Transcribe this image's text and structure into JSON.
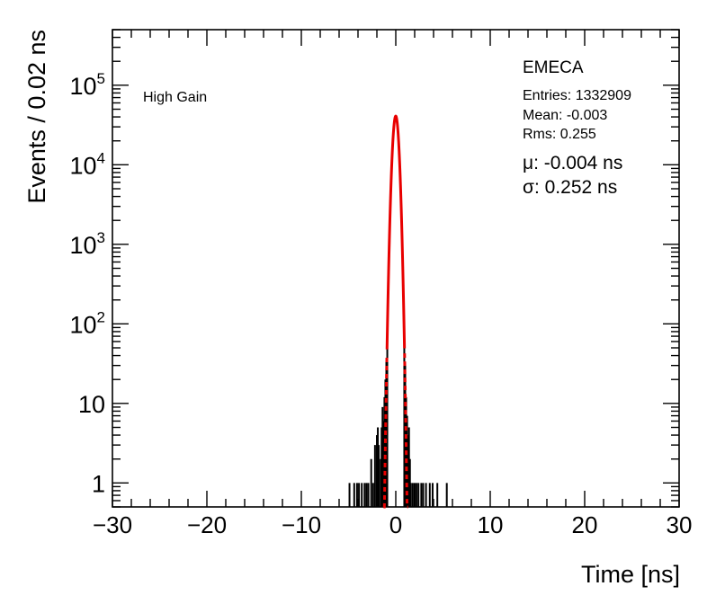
{
  "chart_data": {
    "type": "histogram",
    "title": "",
    "xlabel": "Time [ns]",
    "ylabel": "Events / 0.02 ns",
    "xlim": [
      -30,
      30
    ],
    "ylim": [
      0.5,
      500000
    ],
    "yscale": "log",
    "grid": false,
    "x_ticks": [
      -30,
      -20,
      -10,
      0,
      10,
      20,
      30
    ],
    "x_tick_labels": [
      "−30",
      "−20",
      "−10",
      "0",
      "10",
      "20",
      "30"
    ],
    "y_ticks": [
      1,
      10,
      100,
      1000,
      10000,
      100000
    ],
    "y_tick_labels": [
      {
        "base": "1",
        "exp": ""
      },
      {
        "base": "10",
        "exp": ""
      },
      {
        "base": "10",
        "exp": "2"
      },
      {
        "base": "10",
        "exp": "3"
      },
      {
        "base": "10",
        "exp": "4"
      },
      {
        "base": "10",
        "exp": "5"
      }
    ],
    "label_top_left": "High Gain",
    "label_top_right": "EMECA",
    "stats": [
      "Entries: 1332909",
      "Mean: -0.003",
      "Rms: 0.255"
    ],
    "fit_results": [
      "μ: -0.004 ns",
      "σ: 0.252 ns"
    ],
    "histogram": {
      "name": "data",
      "color": "#000000",
      "x": [
        -4.9,
        -4.4,
        -4.1,
        -3.9,
        -3.6,
        -3.3,
        -3.1,
        -2.9,
        -2.6,
        -2.4,
        -2.2,
        -2.0,
        -1.9,
        -1.8,
        -1.6,
        -1.5,
        -1.4,
        -1.3,
        -1.2,
        -1.1,
        -1.0,
        -0.9,
        0.9,
        1.0,
        1.1,
        1.2,
        1.3,
        1.4,
        1.5,
        1.6,
        1.8,
        2.0,
        2.2,
        2.4,
        2.7,
        2.9,
        3.2,
        3.6,
        3.9,
        4.4,
        5.4
      ],
      "y": [
        1,
        1,
        1,
        1,
        1,
        1,
        1,
        1,
        2,
        1,
        3,
        4,
        5,
        3,
        2,
        5,
        9,
        6,
        12,
        20,
        35,
        80,
        80,
        30,
        12,
        7,
        4,
        5,
        2,
        1,
        1,
        1,
        1,
        1,
        1,
        1,
        1,
        1,
        1,
        1,
        1
      ]
    },
    "fit": {
      "name": "Gaussian fit",
      "color": "#e80000",
      "amplitude": 41000,
      "mean": -0.004,
      "sigma": 0.252
    }
  }
}
